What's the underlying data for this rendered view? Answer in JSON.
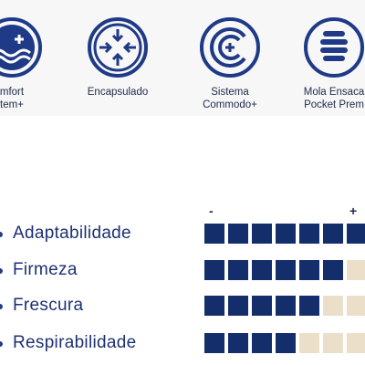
{
  "features": [
    {
      "icon": "comfort-wave-icon",
      "label": "mfort\ntem+"
    },
    {
      "icon": "encapsulated-arrows-icon",
      "label": "Encapsulado"
    },
    {
      "icon": "commodo-plus-icon",
      "label": "Sistema\nCommodo+"
    },
    {
      "icon": "pocket-spring-icon",
      "label": "Mola Ensaca\nPocket Prem"
    }
  ],
  "scale": {
    "min_label": "-",
    "max_label": "+"
  },
  "attributes": [
    {
      "label": "Adaptabilidade",
      "level": 7,
      "max": 7
    },
    {
      "label": "Firmeza",
      "level": 6,
      "max": 7
    },
    {
      "label": "Frescura",
      "level": 5,
      "max": 7
    },
    {
      "label": "Respirabilidade",
      "level": 4,
      "max": 7
    }
  ],
  "colors": {
    "filled": "#142e6b",
    "empty": "#ecdfc9",
    "icon": "#1f3a86",
    "text": "#1d3173"
  }
}
